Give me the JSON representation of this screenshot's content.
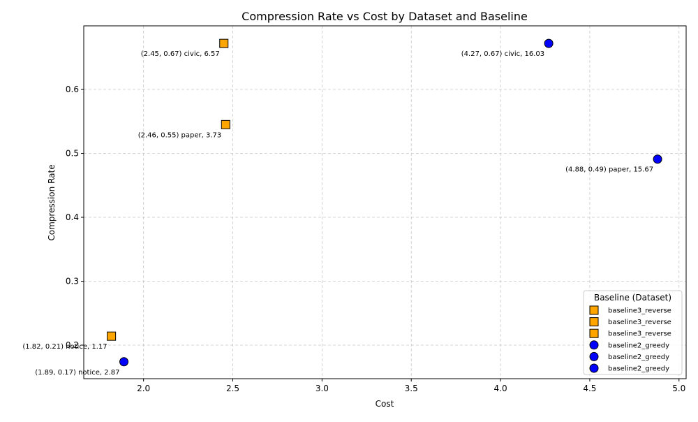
{
  "chart_data": {
    "type": "scatter",
    "title": "Compression Rate vs Cost by Dataset and Baseline",
    "xlabel": "Cost",
    "ylabel": "Compression Rate",
    "xlim": [
      1.665,
      5.04
    ],
    "ylim": [
      0.1475,
      0.6995
    ],
    "xticks": [
      2.0,
      2.5,
      3.0,
      3.5,
      4.0,
      4.5,
      5.0
    ],
    "xtick_labels": [
      "2.0",
      "2.5",
      "3.0",
      "3.5",
      "4.0",
      "4.5",
      "5.0"
    ],
    "yticks": [
      0.2,
      0.3,
      0.4,
      0.5,
      0.6
    ],
    "ytick_labels": [
      "0.2",
      "0.3",
      "0.4",
      "0.5",
      "0.6"
    ],
    "grid": true,
    "legend": {
      "title": "Baseline (Dataset)",
      "placement": "bottom-right",
      "entries": [
        {
          "label": "baseline3_reverse",
          "marker": "square",
          "color": "#ffa500"
        },
        {
          "label": "baseline3_reverse",
          "marker": "square",
          "color": "#ffa500"
        },
        {
          "label": "baseline3_reverse",
          "marker": "square",
          "color": "#ffa500"
        },
        {
          "label": "baseline2_greedy",
          "marker": "circle",
          "color": "#0000ff"
        },
        {
          "label": "baseline2_greedy",
          "marker": "circle",
          "color": "#0000ff"
        },
        {
          "label": "baseline2_greedy",
          "marker": "circle",
          "color": "#0000ff"
        }
      ]
    },
    "series": [
      {
        "name": "baseline3_reverse",
        "marker": "square",
        "color": "#ffa500",
        "points": [
          {
            "x": 2.45,
            "y": 0.672,
            "label": "(2.45, 0.67) civic, 6.57"
          },
          {
            "x": 2.46,
            "y": 0.545,
            "label": "(2.46, 0.55) paper, 3.73"
          },
          {
            "x": 1.82,
            "y": 0.214,
            "label": "(1.82, 0.21) notice, 1.17"
          }
        ]
      },
      {
        "name": "baseline2_greedy",
        "marker": "circle",
        "color": "#0000ff",
        "points": [
          {
            "x": 4.27,
            "y": 0.672,
            "label": "(4.27, 0.67) civic, 16.03"
          },
          {
            "x": 4.88,
            "y": 0.491,
            "label": "(4.88, 0.49) paper, 15.67"
          },
          {
            "x": 1.89,
            "y": 0.174,
            "label": "(1.89, 0.17) notice, 2.87"
          }
        ]
      }
    ]
  }
}
